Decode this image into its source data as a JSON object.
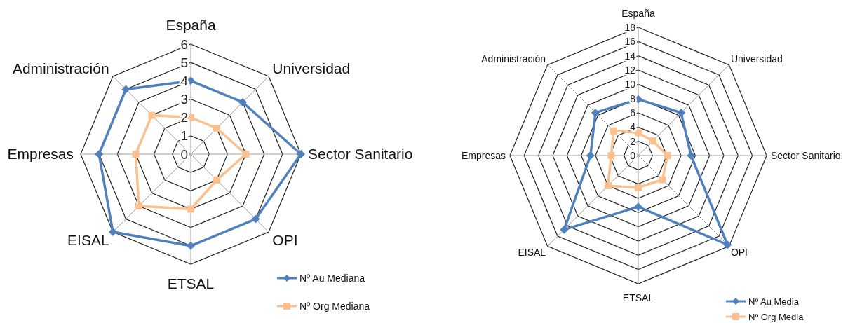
{
  "chart_data": [
    {
      "type": "radar",
      "categories": [
        "España",
        "Universidad",
        "Sector Sanitario",
        "OPI",
        "ETSAL",
        "EISAL",
        "Empresas",
        "Administración"
      ],
      "ylim": [
        0,
        6
      ],
      "yticks": [
        0,
        1,
        2,
        3,
        4,
        5,
        6
      ],
      "legend": "bottom right",
      "series": [
        {
          "name": "Nº Au Mediana",
          "color": "#4f81bd",
          "marker": "diamond",
          "values": [
            4,
            4,
            6,
            5,
            5,
            6,
            5,
            5
          ]
        },
        {
          "name": "Nº Org Mediana",
          "color": "#fac090",
          "marker": "square",
          "values": [
            2,
            2,
            3,
            2,
            3,
            4,
            3,
            3
          ]
        }
      ]
    },
    {
      "type": "radar",
      "categories": [
        "España",
        "Universidad",
        "Sector Sanitario",
        "OPI",
        "ETSAL",
        "EISAL",
        "Empresas",
        "Administración"
      ],
      "ylim": [
        0,
        18
      ],
      "yticks": [
        0,
        2,
        4,
        6,
        8,
        10,
        12,
        14,
        16,
        18
      ],
      "legend": "bottom right",
      "series": [
        {
          "name": "Nº Au Media",
          "color": "#4f81bd",
          "marker": "diamond",
          "values": [
            7.9,
            8.5,
            7.4,
            17.7,
            7.2,
            14.7,
            6.7,
            8.5
          ]
        },
        {
          "name": "Nº Org Media",
          "color": "#fac090",
          "marker": "square",
          "values": [
            3.2,
            2.9,
            4.1,
            4.8,
            4.5,
            6.0,
            3.8,
            4.9
          ]
        }
      ]
    }
  ]
}
